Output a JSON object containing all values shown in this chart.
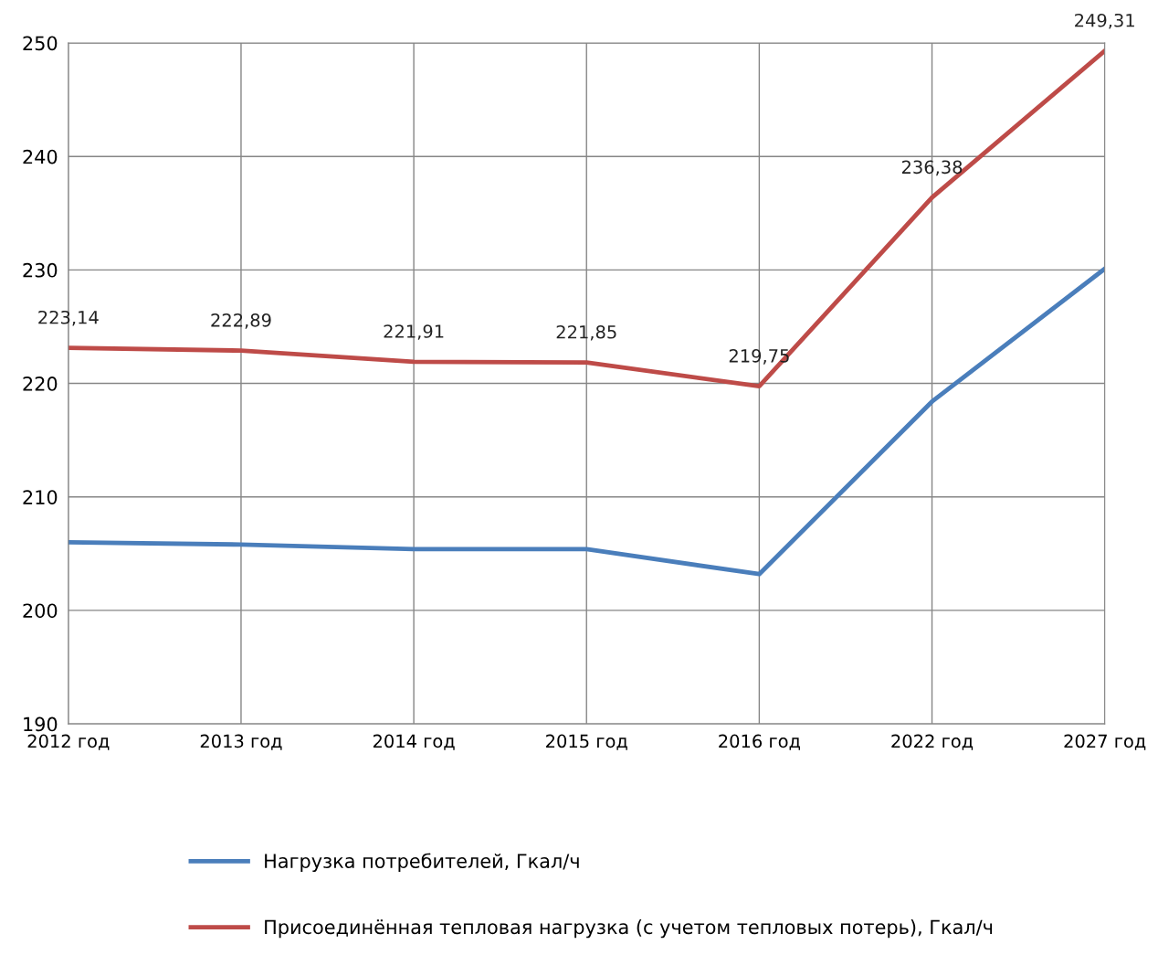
{
  "chart_data": {
    "type": "line",
    "categories": [
      "2012 год",
      "2013 год",
      "2014 год",
      "2015 год",
      "2016 год",
      "2022 год",
      "2027 год"
    ],
    "series": [
      {
        "name": "Нагрузка потребителей, Гкал/ч",
        "color": "#4a7ebb",
        "values": [
          206.0,
          205.8,
          205.4,
          205.4,
          203.2,
          218.4,
          230.1
        ]
      },
      {
        "name": "Присоединённая тепловая нагрузка (с учетом тепловых потерь), Гкал/ч",
        "color": "#be4b48",
        "values": [
          223.14,
          222.89,
          221.91,
          221.85,
          219.75,
          236.38,
          249.31
        ],
        "value_labels": [
          "223,14",
          "222,89",
          "221,91",
          "221,85",
          "219,75",
          "236,38",
          "249,31"
        ]
      }
    ],
    "ylim": [
      190,
      250
    ],
    "yticks": [
      190,
      200,
      210,
      220,
      230,
      240,
      250
    ],
    "grid": true,
    "legend": "bottom",
    "marker": "none",
    "line_style": "solid"
  }
}
